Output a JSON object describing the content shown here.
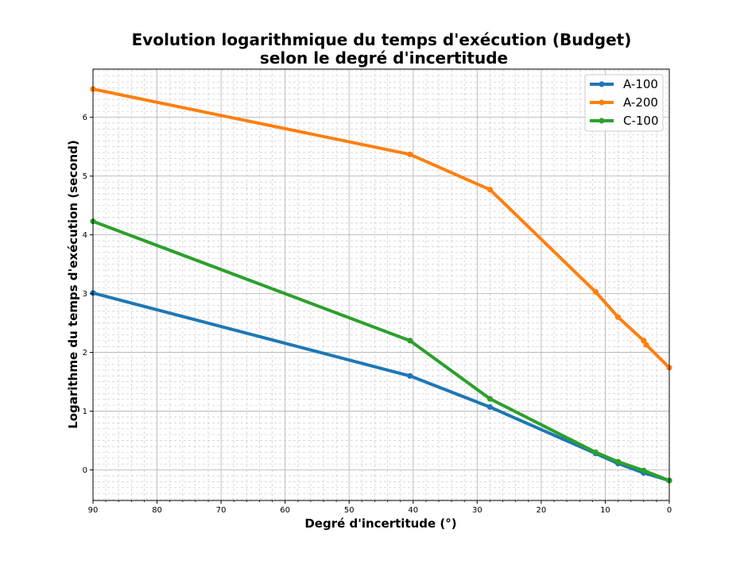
{
  "chart_data": {
    "type": "line",
    "title_line1": "Evolution logarithmique du temps d'exécution (Budget)",
    "title_line2": "selon  le degré d'incertitude",
    "xlabel": "Degré d'incertitude (°)",
    "ylabel": "Logarithme du temps d'exécution (second)",
    "xlim": [
      90,
      0
    ],
    "ylim": [
      -0.52,
      6.82
    ],
    "x_inverted": true,
    "x_ticks": [
      90,
      80,
      70,
      60,
      50,
      40,
      30,
      20,
      10,
      0
    ],
    "x_tick_labels": [
      "90",
      "80",
      "70",
      "60",
      "50",
      "40",
      "30",
      "20",
      "10",
      "0"
    ],
    "y_ticks": [
      0,
      1,
      2,
      3,
      4,
      5,
      6
    ],
    "y_tick_labels": [
      "0",
      "1",
      "2",
      "3",
      "4",
      "5",
      "6"
    ],
    "grid": true,
    "minor_grid": true,
    "legend_position": "top-right",
    "series": [
      {
        "name": "A-100",
        "color": "#1f77b4",
        "x": [
          90,
          40.5,
          28,
          11.5,
          8,
          4,
          0
        ],
        "y": [
          3.01,
          1.6,
          1.07,
          0.28,
          0.11,
          -0.05,
          -0.18
        ]
      },
      {
        "name": "A-200",
        "color": "#ff7f0e",
        "x": [
          90,
          40.5,
          28,
          11.5,
          8,
          4,
          3.6,
          0
        ],
        "y": [
          6.48,
          5.37,
          4.77,
          3.03,
          2.6,
          2.2,
          2.13,
          1.74
        ]
      },
      {
        "name": "C-100",
        "color": "#2ca02c",
        "x": [
          90,
          40.5,
          28,
          11.5,
          8,
          4,
          0
        ],
        "y": [
          4.23,
          2.2,
          1.21,
          0.3,
          0.14,
          -0.01,
          -0.18
        ]
      }
    ]
  }
}
